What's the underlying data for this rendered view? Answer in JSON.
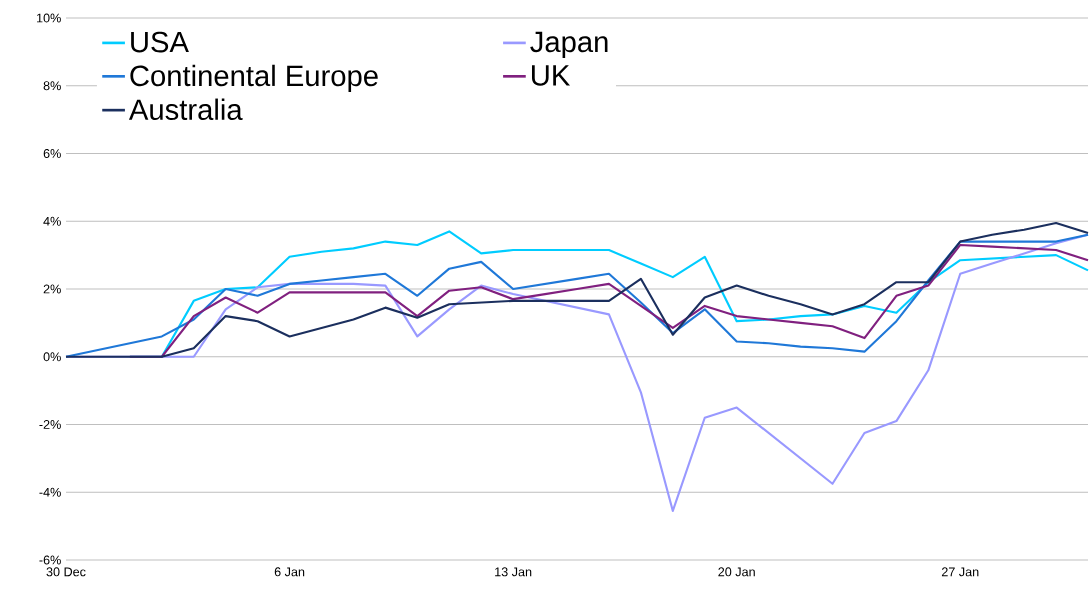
{
  "chart_data": {
    "type": "line",
    "categories": [
      "30 Dec",
      null,
      null,
      null,
      null,
      null,
      null,
      "6 Jan",
      null,
      null,
      null,
      null,
      null,
      null,
      "13 Jan",
      null,
      null,
      null,
      null,
      null,
      null,
      "20 Jan",
      null,
      null,
      null,
      null,
      null,
      null,
      "27 Jan",
      null,
      null,
      null,
      null
    ],
    "series": [
      {
        "name": "USA",
        "color": "#00ccff",
        "values": [
          null,
          null,
          0,
          0,
          1.65,
          2.0,
          2.05,
          2.95,
          3.1,
          3.2,
          3.4,
          3.3,
          3.7,
          3.05,
          3.15,
          3.15,
          3.15,
          3.15,
          2.75,
          2.35,
          2.95,
          1.05,
          1.1,
          1.2,
          1.25,
          1.5,
          1.3,
          2.2,
          2.85,
          2.9,
          2.95,
          3.0,
          2.55
        ]
      },
      {
        "name": "Japan",
        "color": "#9999ff",
        "values": [
          0,
          0,
          0,
          0,
          0,
          1.4,
          2.05,
          2.15,
          2.15,
          2.15,
          2.1,
          0.6,
          1.4,
          2.1,
          1.85,
          1.65,
          1.45,
          1.25,
          -1.05,
          -4.55,
          -1.8,
          -1.5,
          -2.25,
          -3.0,
          -3.75,
          -2.25,
          -1.9,
          -0.4,
          2.45,
          2.75,
          3.05,
          3.35,
          3.6
        ]
      },
      {
        "name": "Continental Europe",
        "color": "#1f78d8",
        "values": [
          0,
          0.2,
          0.4,
          0.6,
          1.1,
          2.0,
          1.8,
          2.15,
          2.25,
          2.35,
          2.45,
          1.8,
          2.6,
          2.8,
          2.0,
          2.15,
          2.3,
          2.45,
          1.6,
          0.7,
          1.4,
          0.45,
          0.4,
          0.3,
          0.25,
          0.15,
          1.05,
          2.25,
          3.4,
          3.4,
          3.4,
          3.4,
          3.6
        ]
      },
      {
        "name": "UK",
        "color": "#80207f",
        "values": [
          null,
          null,
          0,
          0,
          1.2,
          1.75,
          1.3,
          1.9,
          1.9,
          1.9,
          1.9,
          1.2,
          1.95,
          2.05,
          1.7,
          1.85,
          2.0,
          2.15,
          1.5,
          0.85,
          1.5,
          1.2,
          1.1,
          1.0,
          0.9,
          0.55,
          1.8,
          2.1,
          3.3,
          3.25,
          3.2,
          3.15,
          2.85
        ]
      },
      {
        "name": "Australia",
        "color": "#1b2f5e",
        "values": [
          0,
          0,
          0,
          0,
          0.25,
          1.2,
          1.05,
          0.6,
          0.85,
          1.1,
          1.45,
          1.15,
          1.55,
          1.6,
          1.65,
          1.65,
          1.65,
          1.65,
          2.3,
          0.65,
          1.75,
          2.1,
          1.8,
          1.55,
          1.25,
          1.55,
          2.2,
          2.2,
          3.4,
          3.6,
          3.75,
          3.95,
          3.65
        ]
      }
    ],
    "ylim": [
      -6,
      10
    ],
    "yticks": [
      {
        "value": -6,
        "label": "-6%"
      },
      {
        "value": -4,
        "label": "-4%"
      },
      {
        "value": -2,
        "label": "-2%"
      },
      {
        "value": 0,
        "label": "0%"
      },
      {
        "value": 2,
        "label": "2%"
      },
      {
        "value": 4,
        "label": "4%"
      },
      {
        "value": 6,
        "label": "6%"
      },
      {
        "value": 8,
        "label": "8%"
      },
      {
        "value": 10,
        "label": "10%"
      }
    ],
    "grid": "y",
    "legend": "top left",
    "marker": "none",
    "line_style": "solid"
  }
}
